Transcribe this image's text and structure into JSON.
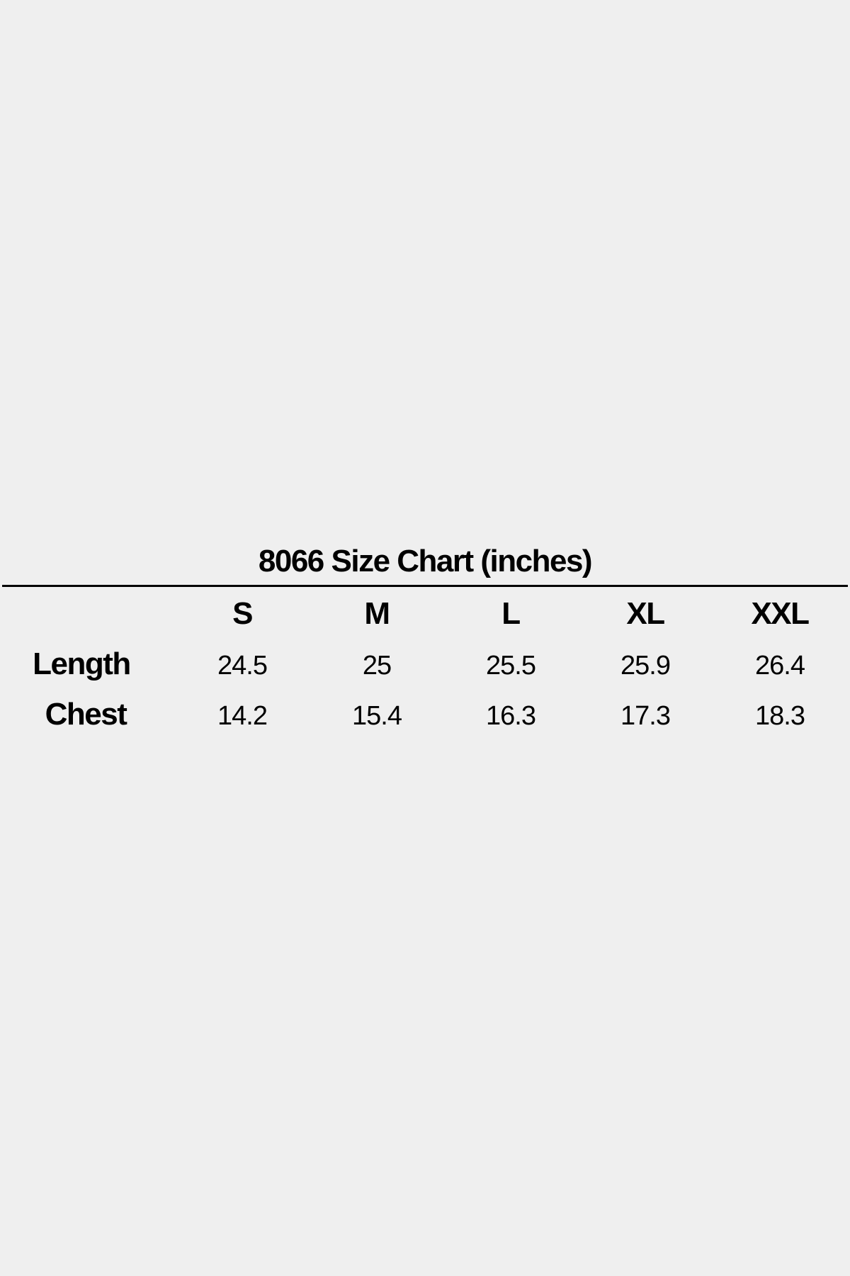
{
  "title": "8066 Size Chart (inches)",
  "table": {
    "columns": [
      "S",
      "M",
      "L",
      "XL",
      "XXL"
    ],
    "rows": [
      {
        "label": "Length",
        "values": [
          "24.5",
          "25",
          "25.5",
          "25.9",
          "26.4"
        ]
      },
      {
        "label": "Chest",
        "values": [
          "14.2",
          "15.4",
          "16.3",
          "17.3",
          "18.3"
        ]
      }
    ]
  }
}
